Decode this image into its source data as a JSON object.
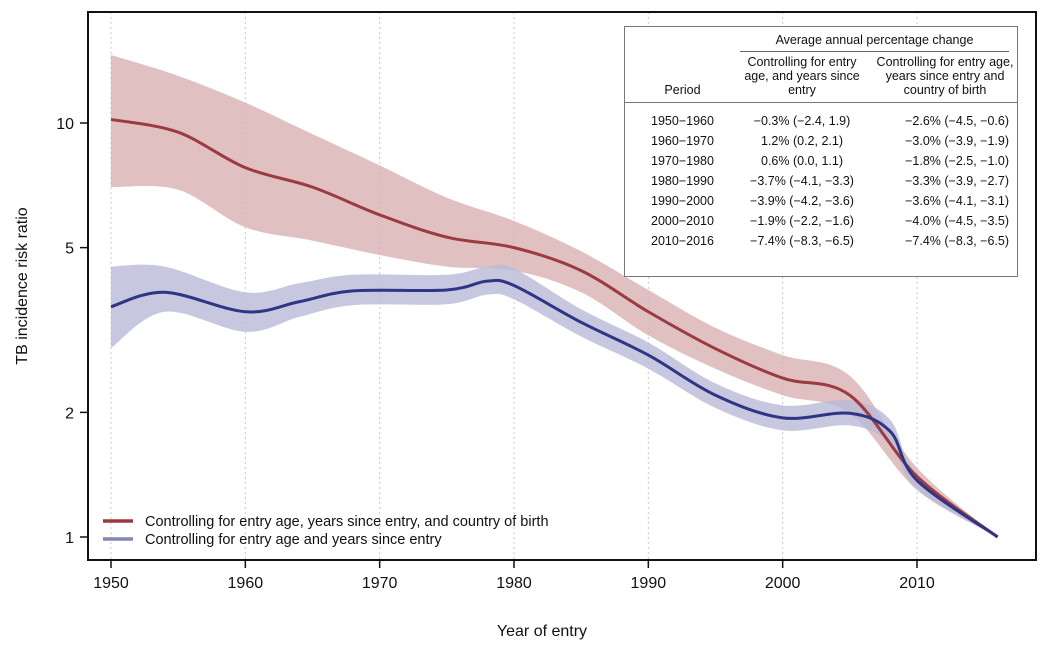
{
  "chart_data": {
    "type": "line",
    "title": "",
    "xlabel": "Year of entry",
    "ylabel": "TB incidence risk ratio",
    "yscale": "log",
    "xlim": [
      1948,
      2018.5
    ],
    "ylim": [
      0.9,
      17
    ],
    "xticks": [
      1950,
      1960,
      1970,
      1980,
      1990,
      2000,
      2010
    ],
    "yticks": [
      1,
      2,
      5,
      10
    ],
    "grid": "vertical-dotted",
    "legend_position": "bottom-left",
    "series": [
      {
        "name": "Controlling for entry age, years since entry, and country of birth",
        "color": "#9b3a40",
        "band_color": "#d8b0b1",
        "x": [
          1950,
          1955,
          1960,
          1965,
          1970,
          1975,
          1980,
          1985,
          1990,
          1995,
          2000,
          2005,
          2010,
          2016
        ],
        "y": [
          10.2,
          9.5,
          7.8,
          7.0,
          6.0,
          5.3,
          5.0,
          4.4,
          3.5,
          2.85,
          2.42,
          2.2,
          1.4,
          1.0
        ],
        "upper": [
          14.6,
          13.0,
          11.2,
          9.4,
          7.9,
          6.6,
          5.8,
          4.9,
          3.95,
          3.2,
          2.75,
          2.45,
          1.47,
          1.0
        ],
        "lower": [
          7.0,
          6.9,
          5.6,
          5.2,
          4.8,
          4.5,
          4.4,
          3.9,
          3.07,
          2.55,
          2.2,
          1.99,
          1.3,
          1.0
        ]
      },
      {
        "name": "Controlling for entry age and years since entry",
        "color": "#2f3585",
        "band_color": "#b9b9d8",
        "x": [
          1950,
          1954,
          1960,
          1964,
          1968,
          1975,
          1978,
          1980,
          1985,
          1990,
          1995,
          2000,
          2005,
          2008,
          2010,
          2016
        ],
        "y": [
          3.6,
          3.9,
          3.5,
          3.7,
          3.93,
          3.95,
          4.15,
          4.05,
          3.3,
          2.75,
          2.2,
          1.94,
          1.99,
          1.8,
          1.37,
          1.0
        ],
        "upper": [
          4.5,
          4.5,
          3.9,
          4.1,
          4.3,
          4.3,
          4.5,
          4.45,
          3.55,
          2.95,
          2.35,
          2.08,
          2.14,
          1.92,
          1.42,
          1.0
        ],
        "lower": [
          2.86,
          3.5,
          3.13,
          3.4,
          3.63,
          3.65,
          3.85,
          3.75,
          3.05,
          2.55,
          2.05,
          1.81,
          1.86,
          1.68,
          1.3,
          1.0
        ]
      }
    ],
    "inset_table": {
      "group_header": "Average annual percentage change",
      "period_header": "Period",
      "col1_header": "Controlling for entry age, and years since entry",
      "col2_header": "Controlling for entry age, years since entry and country of birth",
      "rows": [
        {
          "period": "1950−1960",
          "col1": "−0.3% (−2.4, 1.9)",
          "col2": "−2.6% (−4.5, −0.6)"
        },
        {
          "period": "1960−1970",
          "col1": "1.2% (0.2, 2.1)",
          "col2": "−3.0% (−3.9, −1.9)"
        },
        {
          "period": "1970−1980",
          "col1": "0.6% (0.0, 1.1)",
          "col2": "−1.8% (−2.5, −1.0)"
        },
        {
          "period": "1980−1990",
          "col1": "−3.7% (−4.1, −3.3)",
          "col2": "−3.3% (−3.9, −2.7)"
        },
        {
          "period": "1990−2000",
          "col1": "−3.9% (−4.2, −3.6)",
          "col2": "−3.6% (−4.1, −3.1)"
        },
        {
          "period": "2000−2010",
          "col1": "−1.9% (−2.2, −1.6)",
          "col2": "−4.0% (−4.5, −3.5)"
        },
        {
          "period": "2010−2016",
          "col1": "−7.4% (−8.3, −6.5)",
          "col2": "−7.4% (−8.3, −6.5)"
        }
      ]
    }
  }
}
